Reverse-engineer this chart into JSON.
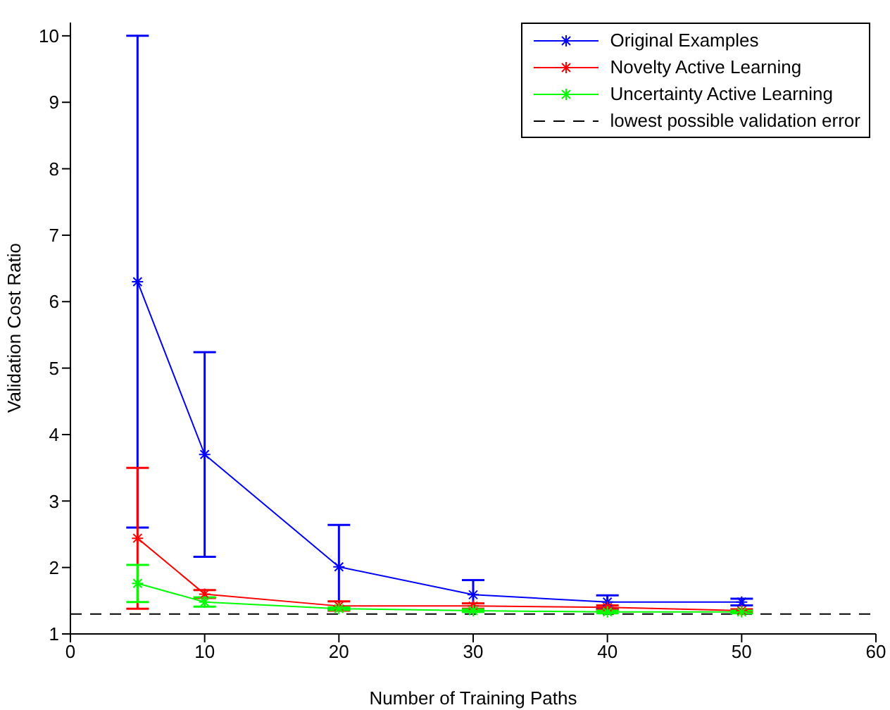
{
  "chart_data": {
    "type": "line",
    "xlabel": "Number of Training Paths",
    "ylabel": "Validation Cost Ratio",
    "x": [
      5,
      10,
      20,
      30,
      40,
      50
    ],
    "series": [
      {
        "name": "Original Examples",
        "color": "#0000ff",
        "values": [
          6.3,
          3.7,
          2.01,
          1.59,
          1.48,
          1.48
        ],
        "errors": [
          3.7,
          1.54,
          0.63,
          0.22,
          0.1,
          0.05
        ]
      },
      {
        "name": "Novelty Active Learning",
        "color": "#ff0000",
        "values": [
          2.44,
          1.6,
          1.42,
          1.42,
          1.4,
          1.35
        ],
        "errors": [
          1.06,
          0.06,
          0.07,
          0.04,
          0.03,
          0.02
        ]
      },
      {
        "name": "Uncertainty Active Learning",
        "color": "#00ff00",
        "values": [
          1.76,
          1.48,
          1.38,
          1.35,
          1.33,
          1.33
        ],
        "errors": [
          0.28,
          0.07,
          0.02,
          0.02,
          0.02,
          0.02
        ]
      }
    ],
    "ref_lines": [
      {
        "axis": "y",
        "value": 1.3,
        "label": "lowest possible validation error",
        "color": "#000000",
        "line_style": "dashed"
      }
    ],
    "xlim": [
      0,
      60
    ],
    "xticks": [
      0,
      10,
      20,
      30,
      40,
      50,
      60
    ],
    "ylim": [
      1,
      10.2
    ],
    "yticks": [
      1,
      2,
      3,
      4,
      5,
      6,
      7,
      8,
      9,
      10
    ],
    "marker": "cross",
    "line_style": "solid",
    "grid": false,
    "legend": "top right"
  }
}
